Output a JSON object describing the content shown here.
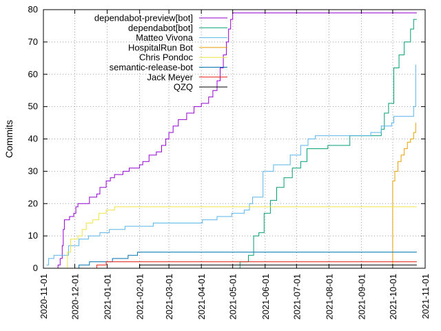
{
  "chart_data": {
    "type": "line",
    "title": "",
    "xlabel": "",
    "ylabel": "Commits",
    "ylim": [
      0,
      80
    ],
    "yticks": [
      0,
      10,
      20,
      30,
      40,
      50,
      60,
      70,
      80
    ],
    "xlim": [
      "2020-11-01",
      "2021-11-01"
    ],
    "xticks": [
      "2020-11-01",
      "2020-12-01",
      "2021-01-01",
      "2021-02-01",
      "2021-03-01",
      "2021-04-01",
      "2021-05-01",
      "2021-06-01",
      "2021-07-01",
      "2021-08-01",
      "2021-09-01",
      "2021-10-01",
      "2021-11-01"
    ],
    "grid": true,
    "legend_position": "top-left",
    "series": [
      {
        "name": "dependabot-preview[bot]",
        "color": "#9400d3",
        "points": [
          [
            "2020-11-12",
            0
          ],
          [
            "2020-11-15",
            1
          ],
          [
            "2020-11-17",
            3
          ],
          [
            "2020-11-19",
            7
          ],
          [
            "2020-11-20",
            12
          ],
          [
            "2020-11-21",
            15
          ],
          [
            "2020-11-26",
            16
          ],
          [
            "2020-11-30",
            17
          ],
          [
            "2020-12-02",
            19
          ],
          [
            "2020-12-04",
            20
          ],
          [
            "2020-12-15",
            22
          ],
          [
            "2020-12-22",
            23
          ],
          [
            "2020-12-25",
            25
          ],
          [
            "2020-12-31",
            27
          ],
          [
            "2021-01-04",
            28
          ],
          [
            "2021-01-08",
            29
          ],
          [
            "2021-01-16",
            30
          ],
          [
            "2021-01-22",
            31
          ],
          [
            "2021-02-01",
            32
          ],
          [
            "2021-02-04",
            33
          ],
          [
            "2021-02-10",
            35
          ],
          [
            "2021-02-17",
            36
          ],
          [
            "2021-02-22",
            38
          ],
          [
            "2021-02-26",
            40
          ],
          [
            "2021-03-01",
            42
          ],
          [
            "2021-03-05",
            44
          ],
          [
            "2021-03-10",
            46
          ],
          [
            "2021-03-18",
            48
          ],
          [
            "2021-03-25",
            50
          ],
          [
            "2021-04-01",
            51
          ],
          [
            "2021-04-08",
            53
          ],
          [
            "2021-04-12",
            55
          ],
          [
            "2021-04-16",
            58
          ],
          [
            "2021-04-19",
            62
          ],
          [
            "2021-04-22",
            66
          ],
          [
            "2021-04-25",
            70
          ],
          [
            "2021-04-27",
            74
          ],
          [
            "2021-04-29",
            77
          ],
          [
            "2021-05-01",
            79
          ],
          [
            "2021-10-24",
            79
          ]
        ]
      },
      {
        "name": "dependabot[bot]",
        "color": "#009e73",
        "points": [
          [
            "2021-04-29",
            0
          ],
          [
            "2021-05-08",
            2
          ],
          [
            "2021-05-16",
            4
          ],
          [
            "2021-05-21",
            10
          ],
          [
            "2021-05-26",
            11
          ],
          [
            "2021-05-31",
            17
          ],
          [
            "2021-06-06",
            21
          ],
          [
            "2021-06-12",
            25
          ],
          [
            "2021-06-19",
            28
          ],
          [
            "2021-06-27",
            31
          ],
          [
            "2021-07-05",
            33
          ],
          [
            "2021-07-11",
            37
          ],
          [
            "2021-07-31",
            38
          ],
          [
            "2021-08-21",
            41
          ],
          [
            "2021-09-20",
            43
          ],
          [
            "2021-09-23",
            48
          ],
          [
            "2021-09-27",
            51
          ],
          [
            "2021-10-02",
            62
          ],
          [
            "2021-10-07",
            66
          ],
          [
            "2021-10-12",
            70
          ],
          [
            "2021-10-18",
            74
          ],
          [
            "2021-10-21",
            77
          ],
          [
            "2021-10-24",
            77
          ]
        ]
      },
      {
        "name": "Matteo Vivona",
        "color": "#56b4e9",
        "points": [
          [
            "2020-11-04",
            1
          ],
          [
            "2020-11-06",
            3
          ],
          [
            "2020-11-11",
            4
          ],
          [
            "2020-11-25",
            7
          ],
          [
            "2020-12-05",
            9
          ],
          [
            "2020-12-14",
            10
          ],
          [
            "2020-12-25",
            11
          ],
          [
            "2021-01-03",
            12
          ],
          [
            "2021-01-18",
            13
          ],
          [
            "2021-02-14",
            14
          ],
          [
            "2021-03-15",
            14
          ],
          [
            "2021-04-02",
            15
          ],
          [
            "2021-04-16",
            16
          ],
          [
            "2021-04-30",
            17
          ],
          [
            "2021-05-12",
            18
          ],
          [
            "2021-05-17",
            20
          ],
          [
            "2021-05-20",
            22
          ],
          [
            "2021-05-30",
            30
          ],
          [
            "2021-06-09",
            32
          ],
          [
            "2021-06-25",
            35
          ],
          [
            "2021-07-05",
            38
          ],
          [
            "2021-07-12",
            40
          ],
          [
            "2021-07-19",
            41
          ],
          [
            "2021-09-01",
            41
          ],
          [
            "2021-09-10",
            42
          ],
          [
            "2021-09-20",
            44
          ],
          [
            "2021-09-30",
            45
          ],
          [
            "2021-10-02",
            47
          ],
          [
            "2021-10-21",
            50
          ],
          [
            "2021-10-23",
            63
          ]
        ]
      },
      {
        "name": "HospitalRun Bot",
        "color": "#e69f00",
        "points": [
          [
            "2021-09-30",
            0
          ],
          [
            "2021-10-01",
            27
          ],
          [
            "2021-10-03",
            30
          ],
          [
            "2021-10-06",
            33
          ],
          [
            "2021-10-09",
            35
          ],
          [
            "2021-10-12",
            37
          ],
          [
            "2021-10-15",
            39
          ],
          [
            "2021-10-18",
            40
          ],
          [
            "2021-10-21",
            42
          ],
          [
            "2021-10-23",
            45
          ]
        ]
      },
      {
        "name": "Chris Pondoc",
        "color": "#f0e442",
        "points": [
          [
            "2020-11-22",
            0
          ],
          [
            "2020-11-24",
            5
          ],
          [
            "2020-11-27",
            9
          ],
          [
            "2020-12-04",
            10
          ],
          [
            "2020-12-08",
            12
          ],
          [
            "2020-12-12",
            14
          ],
          [
            "2020-12-18",
            15
          ],
          [
            "2020-12-24",
            17
          ],
          [
            "2020-12-31",
            18
          ],
          [
            "2021-01-08",
            19
          ],
          [
            "2021-10-24",
            19
          ]
        ]
      },
      {
        "name": "semantic-release-bot",
        "color": "#0072b2",
        "points": [
          [
            "2020-11-18",
            0
          ],
          [
            "2020-12-05",
            1
          ],
          [
            "2020-12-15",
            2
          ],
          [
            "2021-01-06",
            3
          ],
          [
            "2021-01-21",
            4
          ],
          [
            "2021-01-30",
            5
          ],
          [
            "2021-10-24",
            5
          ]
        ]
      },
      {
        "name": "Jack Meyer",
        "color": "#e51e10",
        "points": [
          [
            "2020-12-14",
            0
          ],
          [
            "2020-12-22",
            1
          ],
          [
            "2020-12-31",
            2
          ],
          [
            "2021-10-24",
            2
          ]
        ]
      },
      {
        "name": "QZQ",
        "color": "#000000",
        "points": [
          [
            "2021-01-31",
            0
          ],
          [
            "2021-02-01",
            1
          ],
          [
            "2021-10-24",
            1
          ]
        ]
      }
    ]
  }
}
